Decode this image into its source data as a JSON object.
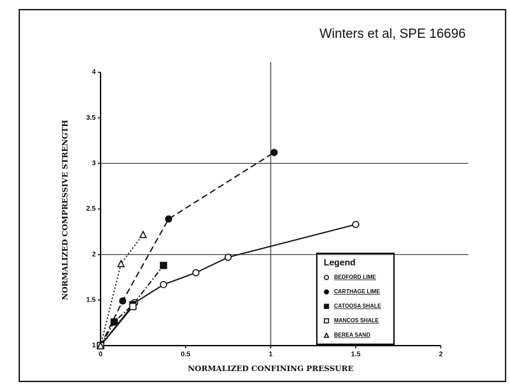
{
  "chart_data": {
    "type": "line",
    "annotation": "Winters et al, SPE 16696",
    "xlabel": "NORMALIZED CONFINING PRESSURE",
    "ylabel": "NORMALIZED COMPRESSIVE STRENGTH",
    "xlim": [
      0,
      2
    ],
    "ylim": [
      1,
      4
    ],
    "xticks": [
      0,
      0.5,
      1,
      1.5,
      2
    ],
    "yticks": [
      1,
      1.5,
      2,
      2.5,
      3,
      3.5,
      4
    ],
    "x_grid": [
      1
    ],
    "y_grid": [
      2,
      3
    ],
    "legend_title": "Legend",
    "legend": "lower right",
    "series": [
      {
        "name": "BEDFORD LIME",
        "color": "#111111",
        "marker": "circle",
        "fill": "open",
        "dash": "solid",
        "x": [
          0,
          0.2,
          0.37,
          0.56,
          0.75,
          1.5
        ],
        "y": [
          1,
          1.47,
          1.67,
          1.8,
          1.97,
          2.33
        ]
      },
      {
        "name": "CARTHAGE LIME",
        "color": "#111111",
        "marker": "circle",
        "fill": "filled",
        "dash": "dashed",
        "x": [
          0,
          0.13,
          0.4,
          1.02
        ],
        "y": [
          1,
          1.49,
          2.39,
          3.12
        ]
      },
      {
        "name": "CATOOSA SHALE",
        "color": "#111111",
        "marker": "square",
        "fill": "filled",
        "dash": "dashdot",
        "x": [
          0,
          0.08,
          0.19,
          0.37
        ],
        "y": [
          1,
          1.26,
          1.45,
          1.88
        ]
      },
      {
        "name": "MANCOS SHALE",
        "color": "#111111",
        "marker": "square",
        "fill": "open",
        "dash": "solid",
        "x": [
          0,
          0.19
        ],
        "y": [
          1,
          1.43
        ]
      },
      {
        "name": "BEREA SAND",
        "color": "#111111",
        "marker": "triangle",
        "fill": "open",
        "dash": "dotted",
        "x": [
          0,
          0.12,
          0.25
        ],
        "y": [
          1,
          1.9,
          2.22
        ]
      }
    ]
  }
}
